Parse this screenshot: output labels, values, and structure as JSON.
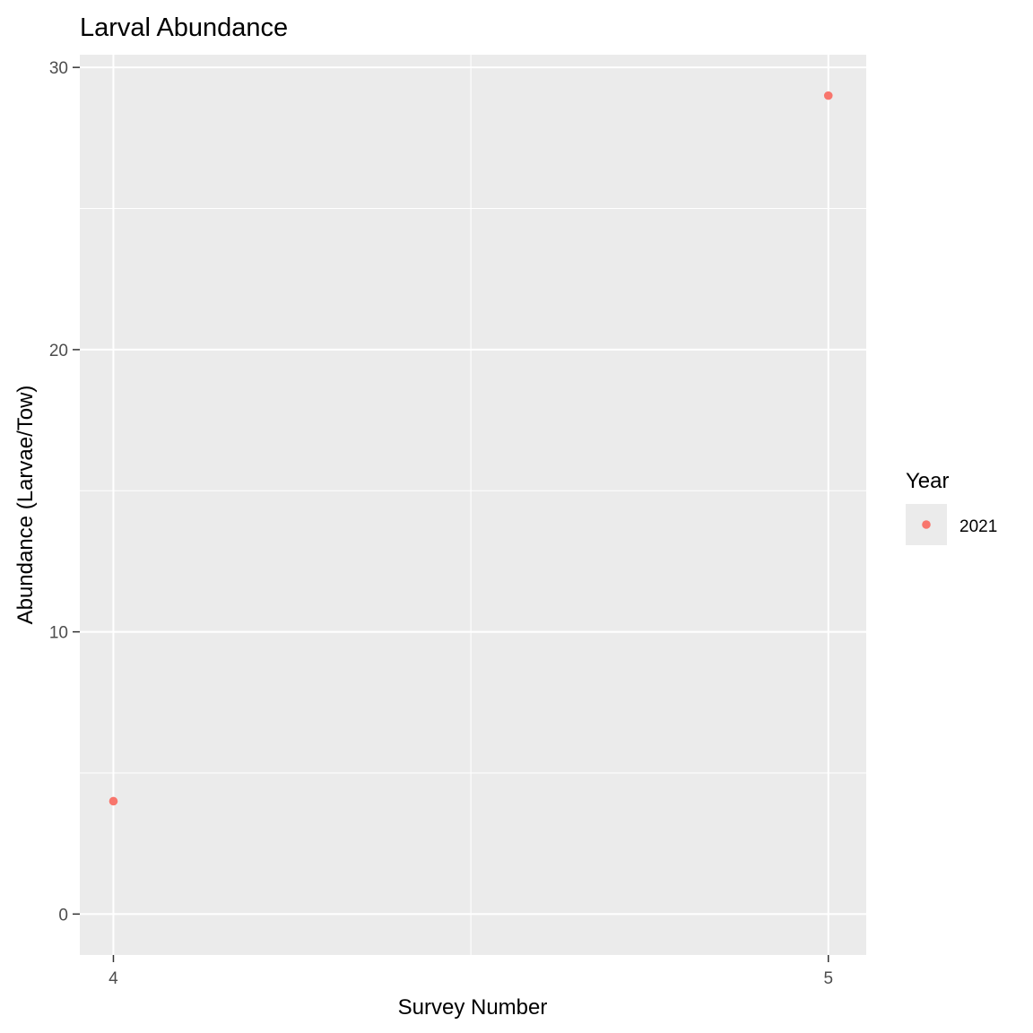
{
  "chart_data": {
    "type": "scatter",
    "title": "Larval Abundance",
    "xlabel": "Survey Number",
    "ylabel": "Abundance (Larvae/Tow)",
    "x_ticks": [
      "4",
      "5"
    ],
    "y_ticks": [
      "0",
      "10",
      "20",
      "30"
    ],
    "xlim": [
      3.953,
      5.053
    ],
    "ylim": [
      -1.45,
      30.45
    ],
    "grid": true,
    "legend": {
      "title": "Year",
      "position": "right",
      "entries": [
        "2021"
      ]
    },
    "series": [
      {
        "name": "2021",
        "color": "#F8766D",
        "points": [
          {
            "x": 4,
            "y": 4
          },
          {
            "x": 5,
            "y": 29
          }
        ]
      }
    ]
  }
}
